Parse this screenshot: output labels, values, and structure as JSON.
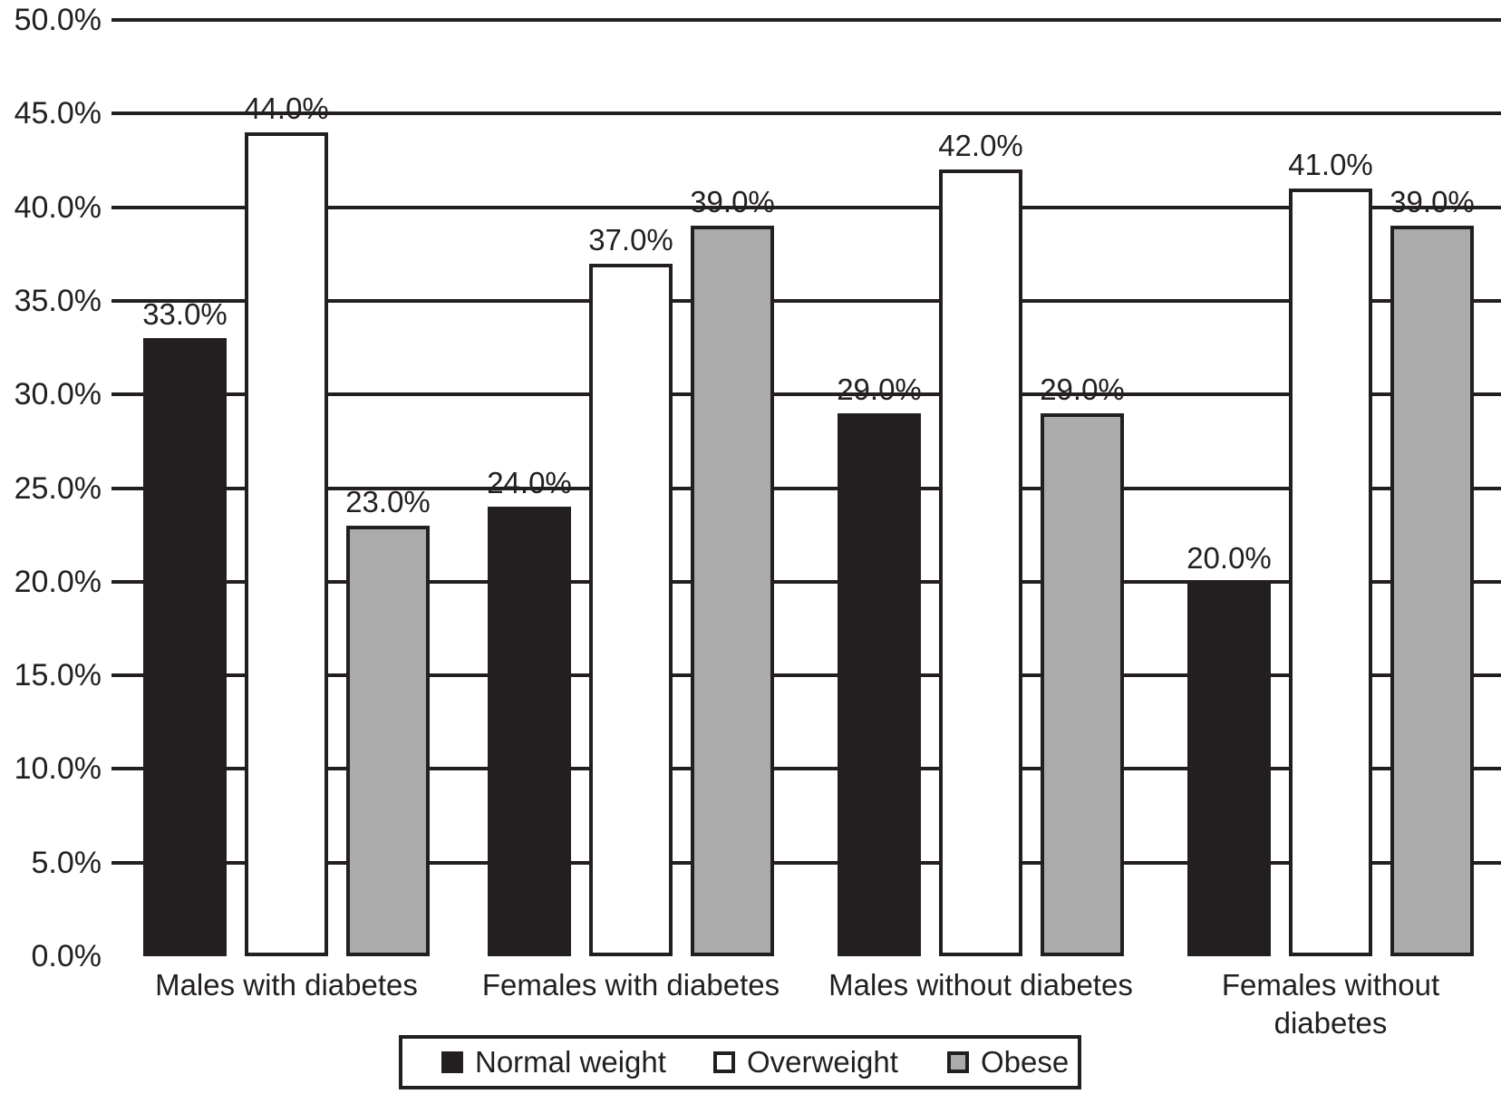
{
  "chart_data": {
    "type": "bar",
    "title": "",
    "xlabel": "",
    "ylabel": "",
    "categories": [
      "Males with diabetes",
      "Females with diabetes",
      "Males without diabetes",
      "Females without\ndiabetes"
    ],
    "series": [
      {
        "name": "Normal weight",
        "color": "#231f20",
        "values": [
          33.0,
          24.0,
          29.0,
          20.0
        ],
        "labels": [
          "33.0%",
          "24.0%",
          "29.0%",
          "20.0%"
        ]
      },
      {
        "name": "Overweight",
        "color": "#ffffff",
        "values": [
          44.0,
          37.0,
          42.0,
          41.0
        ],
        "labels": [
          "44.0%",
          "37.0%",
          "42.0%",
          "41.0%"
        ]
      },
      {
        "name": "Obese",
        "color": "#ababab",
        "values": [
          23.0,
          39.0,
          29.0,
          39.0
        ],
        "labels": [
          "23.0%",
          "39.0%",
          "29.0%",
          "39.0%"
        ]
      }
    ],
    "y_axis": {
      "min": 0,
      "max": 50,
      "step": 5,
      "tick_labels": [
        "0.0%",
        "5.0%",
        "10.0%",
        "15.0%",
        "20.0%",
        "25.0%",
        "30.0%",
        "35.0%",
        "40.0%",
        "45.0%",
        "50.0%"
      ]
    },
    "grid": true,
    "gridline_color": "#231f20",
    "bar_border_color": "#231f20",
    "legend_position": "bottom",
    "legend": [
      {
        "label": "Normal weight",
        "swatch_color": "#231f20"
      },
      {
        "label": "Overweight",
        "swatch_color": "#ffffff"
      },
      {
        "label": "Obese",
        "swatch_color": "#ababab"
      }
    ]
  }
}
